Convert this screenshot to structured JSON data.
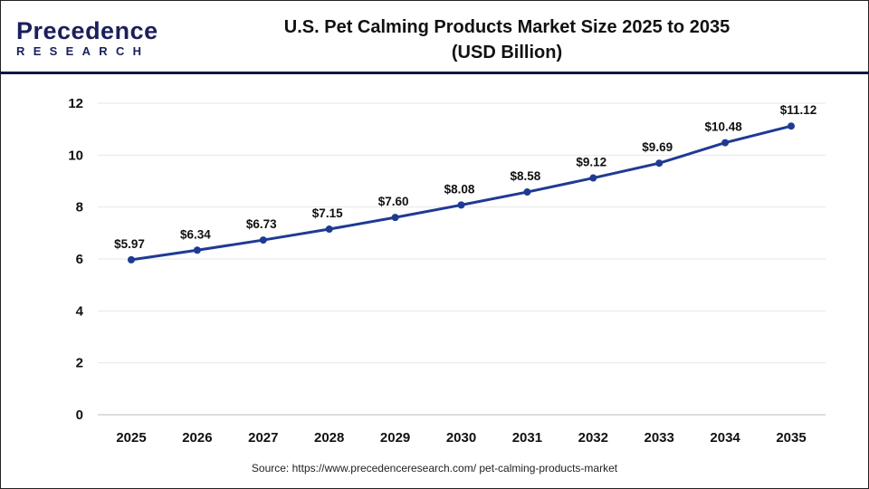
{
  "logo": {
    "line1": "Precedence",
    "line2": "RESEARCH"
  },
  "title_line1": "U.S. Pet Calming Products Market Size 2025 to 2035",
  "title_line2": "(USD Billion)",
  "source": "Source: https://www.precedenceresearch.com/ pet-calming-products-market",
  "colors": {
    "line": "#1f3a93",
    "header_rule": "#12173f",
    "grid": "#e6e6e6"
  },
  "chart_data": {
    "type": "line",
    "title": "U.S. Pet Calming Products Market Size 2025 to 2035 (USD Billion)",
    "categories": [
      "2025",
      "2026",
      "2027",
      "2028",
      "2029",
      "2030",
      "2031",
      "2032",
      "2033",
      "2034",
      "2035"
    ],
    "values": [
      5.97,
      6.34,
      6.73,
      7.15,
      7.6,
      8.08,
      8.58,
      9.12,
      9.69,
      10.48,
      11.12
    ],
    "data_labels": [
      "$5.97",
      "$6.34",
      "$6.73",
      "$7.15",
      "$7.60",
      "$8.08",
      "$8.58",
      "$9.12",
      "$9.69",
      "$10.48",
      "$11.12"
    ],
    "yticks": [
      "0",
      "2",
      "4",
      "6",
      "8",
      "10",
      "12"
    ],
    "ylim": [
      0,
      12
    ],
    "grid": true,
    "legend": "none"
  }
}
